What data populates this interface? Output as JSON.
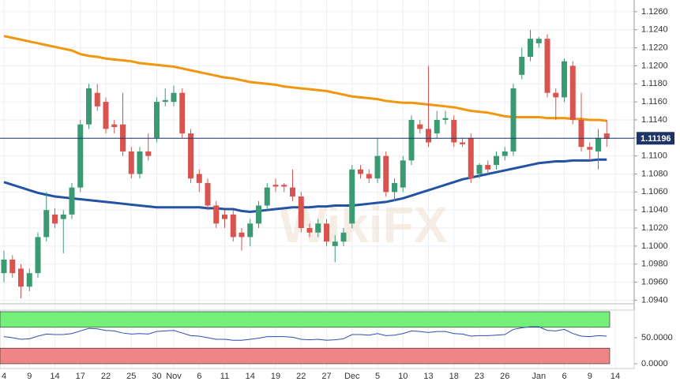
{
  "chart_data": {
    "type": "candlestick",
    "watermark": "WikiFX",
    "categories": [
      "4",
      null,
      null,
      "9",
      null,
      null,
      "14",
      null,
      null,
      "17",
      null,
      null,
      "22",
      null,
      null,
      "25",
      null,
      null,
      "30",
      null,
      "Nov",
      null,
      null,
      "6",
      null,
      null,
      "11",
      null,
      null,
      "14",
      null,
      null,
      "19",
      null,
      null,
      "22",
      null,
      null,
      "27",
      null,
      null,
      "Dec",
      null,
      null,
      "5",
      null,
      null,
      "10",
      null,
      null,
      "13",
      null,
      null,
      "18",
      null,
      null,
      "23",
      null,
      null,
      "26",
      null,
      null,
      null,
      "Jan",
      null,
      null,
      "6",
      null,
      null,
      "9",
      null,
      null,
      "14"
    ],
    "open": [
      1.097,
      1.0985,
      1.0975,
      1.0955,
      1.097,
      1.101,
      1.1035,
      1.103,
      1.1035,
      1.1065,
      1.1135,
      1.117,
      1.116,
      1.1135,
      1.1135,
      1.1105,
      1.108,
      1.1105,
      1.112,
      1.116,
      1.116,
      1.117,
      1.1125,
      1.108,
      1.107,
      1.1045,
      1.1035,
      1.1035,
      1.1015,
      1.101,
      1.1025,
      1.1045,
      1.1068,
      1.1068,
      1.1065,
      1.1055,
      1.102,
      1.1015,
      1.1025,
      1.1,
      1.1005,
      1.1025,
      1.1085,
      1.108,
      1.1075,
      1.11,
      1.106,
      1.1065,
      1.1095,
      1.1135,
      1.113,
      1.1125,
      1.114,
      1.114,
      1.1115,
      1.112,
      1.108,
      1.109,
      1.109,
      1.11,
      1.1105,
      1.119,
      1.121,
      1.1225,
      1.123,
      1.117,
      1.1165,
      1.12,
      1.114,
      1.111,
      1.1105,
      1.1125,
      null
    ],
    "high": [
      1.0995,
      1.099,
      1.098,
      1.0975,
      1.1015,
      1.106,
      1.1042,
      1.104,
      1.107,
      1.114,
      1.118,
      1.118,
      1.1165,
      1.114,
      1.117,
      1.111,
      1.111,
      1.1125,
      1.1165,
      1.1175,
      1.1178,
      1.1175,
      1.113,
      1.1085,
      1.1075,
      1.105,
      1.104,
      1.104,
      1.102,
      1.103,
      1.105,
      1.107,
      1.1075,
      1.107,
      1.1085,
      1.106,
      1.1025,
      1.103,
      1.103,
      1.1012,
      1.102,
      1.109,
      1.109,
      1.1085,
      1.112,
      1.1105,
      1.1075,
      1.11,
      1.1145,
      1.114,
      1.12,
      1.115,
      1.115,
      1.1145,
      1.112,
      1.1125,
      1.1092,
      1.1095,
      1.1105,
      1.111,
      1.118,
      1.122,
      1.124,
      1.1232,
      1.1235,
      1.1175,
      1.1208,
      1.1205,
      1.117,
      1.1115,
      1.113,
      1.114,
      null
    ],
    "low": [
      1.096,
      1.0965,
      1.0942,
      1.095,
      1.0965,
      1.1005,
      1.102,
      1.0992,
      1.103,
      1.106,
      1.113,
      1.115,
      1.1125,
      1.1125,
      1.11,
      1.1075,
      1.1075,
      1.1095,
      1.1115,
      1.1155,
      1.1155,
      1.112,
      1.107,
      1.106,
      1.104,
      1.102,
      1.102,
      1.1005,
      1.0995,
      1.1,
      1.102,
      1.104,
      1.106,
      1.106,
      1.105,
      1.1015,
      1.101,
      1.101,
      1.1,
      1.0982,
      1.1,
      1.102,
      1.1075,
      1.107,
      1.107,
      1.1055,
      1.105,
      1.106,
      1.109,
      1.1125,
      1.111,
      1.112,
      1.1135,
      1.111,
      1.111,
      1.107,
      1.1075,
      1.108,
      1.1085,
      1.1095,
      1.11,
      1.1185,
      1.1205,
      1.122,
      1.1165,
      1.114,
      1.116,
      1.1135,
      1.1105,
      1.1095,
      1.1085,
      1.111,
      null
    ],
    "close": [
      1.0985,
      1.097,
      1.0955,
      1.097,
      1.101,
      1.104,
      1.1025,
      1.1035,
      1.1065,
      1.1135,
      1.1175,
      1.1155,
      1.113,
      1.1132,
      1.1105,
      1.108,
      1.1105,
      1.11,
      1.116,
      1.1162,
      1.117,
      1.1125,
      1.1075,
      1.107,
      1.1045,
      1.1025,
      1.103,
      1.101,
      1.101,
      1.1025,
      1.1045,
      1.1065,
      1.1066,
      1.1066,
      1.1055,
      1.102,
      1.1015,
      1.1025,
      1.1005,
      1.1005,
      1.1015,
      1.1085,
      1.108,
      1.1075,
      1.11,
      1.106,
      1.107,
      1.1095,
      1.114,
      1.113,
      1.1115,
      1.114,
      1.1142,
      1.1115,
      1.1113,
      1.1075,
      1.109,
      1.1085,
      1.11,
      1.1105,
      1.1175,
      1.121,
      1.123,
      1.123,
      1.117,
      1.1165,
      1.1205,
      1.114,
      1.111,
      1.1107,
      1.112,
      1.1119,
      null
    ],
    "up_color": "#3a9a72",
    "down_color": "#d9534f",
    "lines": [
      {
        "color": "#f0960f",
        "values": [
          1.1233,
          1.1231,
          1.1229,
          1.1227,
          1.1225,
          1.1223,
          1.1221,
          1.1219,
          1.1217,
          1.1213,
          1.1211,
          1.121,
          1.1208,
          1.1207,
          1.1206,
          1.1205,
          1.1203,
          1.1202,
          1.1201,
          1.12,
          1.1199,
          1.1197,
          1.1195,
          1.1193,
          1.1191,
          1.1189,
          1.1187,
          1.1186,
          1.1184,
          1.1182,
          1.1181,
          1.118,
          1.1179,
          1.1177,
          1.1176,
          1.1175,
          1.1174,
          1.1173,
          1.1172,
          1.117,
          1.1168,
          1.1166,
          1.1165,
          1.1164,
          1.1163,
          1.1161,
          1.116,
          1.1159,
          1.1159,
          1.1158,
          1.1157,
          1.1156,
          1.1155,
          1.1154,
          1.1152,
          1.115,
          1.1149,
          1.1148,
          1.1146,
          1.1144,
          1.1143,
          1.1143,
          1.1143,
          1.1143,
          1.1142,
          1.1142,
          1.1142,
          1.1141,
          1.1141,
          1.114,
          1.114,
          1.1139,
          null
        ]
      },
      {
        "color": "#2453a3",
        "values": [
          1.1071,
          1.1068,
          1.1065,
          1.1062,
          1.1059,
          1.1057,
          1.1055,
          1.1054,
          1.1053,
          1.1052,
          1.1051,
          1.105,
          1.1049,
          1.1048,
          1.1047,
          1.1046,
          1.1045,
          1.1044,
          1.1043,
          1.1043,
          1.1043,
          1.1043,
          1.1043,
          1.1043,
          1.1042,
          1.1042,
          1.1041,
          1.1041,
          1.1039,
          1.1038,
          1.1039,
          1.104,
          1.1041,
          1.1042,
          1.1043,
          1.1043,
          1.1043,
          1.1044,
          1.1044,
          1.1045,
          1.1045,
          1.1045,
          1.1046,
          1.1047,
          1.1048,
          1.1049,
          1.1051,
          1.1053,
          1.1056,
          1.1059,
          1.1062,
          1.1065,
          1.1068,
          1.1071,
          1.1074,
          1.1076,
          1.1078,
          1.108,
          1.1082,
          1.1084,
          1.1086,
          1.1088,
          1.109,
          1.1092,
          1.1093,
          1.1094,
          1.1094,
          1.1095,
          1.1095,
          1.1095,
          1.1096,
          1.1096,
          null
        ]
      }
    ],
    "ylim": [
      1.0936,
      1.1273
    ],
    "yticks": [
      {
        "value": 1.094,
        "label": "1.0940"
      },
      {
        "value": 1.096,
        "label": "1.0960"
      },
      {
        "value": 1.098,
        "label": "1.0980"
      },
      {
        "value": 1.1,
        "label": "1.1000"
      },
      {
        "value": 1.102,
        "label": "1.1020"
      },
      {
        "value": 1.104,
        "label": "1.1040"
      },
      {
        "value": 1.106,
        "label": "1.1060"
      },
      {
        "value": 1.108,
        "label": "1.1080"
      },
      {
        "value": 1.11,
        "label": "1.1100"
      },
      {
        "value": 1.112,
        "label": "1.1120"
      },
      {
        "value": 1.114,
        "label": "1.1140"
      },
      {
        "value": 1.116,
        "label": "1.1160"
      },
      {
        "value": 1.118,
        "label": "1.1180"
      },
      {
        "value": 1.12,
        "label": "1.1200"
      },
      {
        "value": 1.122,
        "label": "1.1220"
      },
      {
        "value": 1.124,
        "label": "1.1240"
      },
      {
        "value": 1.126,
        "label": "1.1260"
      }
    ],
    "grid": true,
    "last_price": 1.11196,
    "last_price_color": "#1d3566",
    "indicator": {
      "type": "line",
      "color": "#2a4fb0",
      "values": [
        52,
        50,
        47,
        48,
        53,
        57,
        56,
        56,
        58,
        63,
        68,
        67,
        64,
        63,
        59,
        57,
        58,
        57,
        62,
        63,
        64,
        59,
        54,
        53,
        50,
        47,
        47,
        45,
        45,
        47,
        49,
        52,
        52,
        52,
        51,
        47,
        46,
        47,
        45,
        46,
        48,
        56,
        56,
        55,
        58,
        54,
        55,
        58,
        63,
        62,
        60,
        62,
        62,
        58,
        57,
        53,
        54,
        54,
        55,
        56,
        66,
        69,
        71,
        71,
        64,
        63,
        66,
        58,
        53,
        52,
        54,
        53,
        null
      ],
      "ylim": [
        0,
        100
      ],
      "yticks": [
        {
          "value": 50,
          "label": "50.0000"
        },
        {
          "value": 0,
          "label": "0.0000"
        }
      ],
      "zones": [
        {
          "from": 70,
          "to": 100,
          "color": "#74f078"
        },
        {
          "from": 0,
          "to": 30,
          "color": "#ef8585"
        }
      ]
    }
  }
}
